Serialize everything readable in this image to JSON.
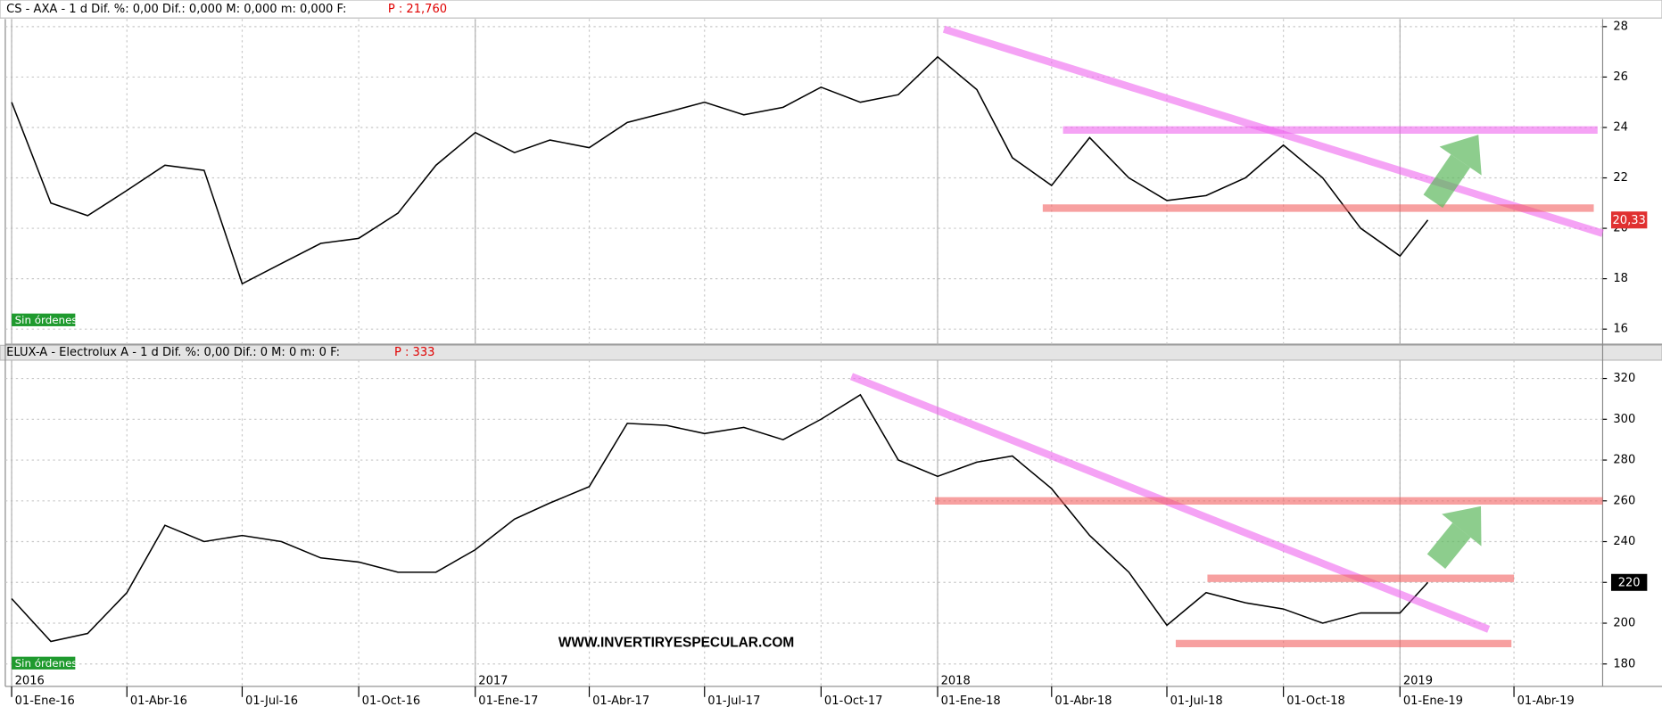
{
  "chart_data": [
    {
      "type": "line",
      "header": "CS - AXA -  1 d Dif. %: 0,00 Dif.: 0,000 M: 0,000 m: 0,000 F:",
      "quote": "P : 21,760",
      "status": "Sin órdenes",
      "color": "#000000",
      "x": [
        "2016-01-01",
        "2016-02-01",
        "2016-03-01",
        "2016-04-01",
        "2016-05-01",
        "2016-06-01",
        "2016-07-01",
        "2016-08-01",
        "2016-09-01",
        "2016-10-01",
        "2016-11-01",
        "2016-12-01",
        "2017-01-01",
        "2017-02-01",
        "2017-03-01",
        "2017-04-01",
        "2017-05-01",
        "2017-06-01",
        "2017-07-01",
        "2017-08-01",
        "2017-09-01",
        "2017-10-01",
        "2017-11-01",
        "2017-12-01",
        "2018-01-01",
        "2018-02-01",
        "2018-03-01",
        "2018-04-01",
        "2018-05-01",
        "2018-06-01",
        "2018-07-01",
        "2018-08-01",
        "2018-09-01",
        "2018-10-01",
        "2018-11-01",
        "2018-12-01",
        "2019-01-01",
        "2019-01-23"
      ],
      "values": [
        25.0,
        21.0,
        20.5,
        21.5,
        22.5,
        22.3,
        17.8,
        18.6,
        19.4,
        19.6,
        20.6,
        22.5,
        23.8,
        23.0,
        23.5,
        23.2,
        24.2,
        24.6,
        25.0,
        24.5,
        24.8,
        25.6,
        25.0,
        25.3,
        26.8,
        25.5,
        22.8,
        21.7,
        23.6,
        22.0,
        21.1,
        21.3,
        22.0,
        23.3,
        22.0,
        20.0,
        18.9,
        20.33
      ],
      "price_tag": {
        "value": 20.33,
        "label": "20,33",
        "color": "#e03030"
      },
      "xlim": [
        "2015-12-27",
        "2019-06-10"
      ],
      "ylim": [
        15.4,
        28.3
      ],
      "yticks": [
        16,
        18,
        20,
        22,
        24,
        26,
        28
      ],
      "grid": true,
      "lines": [
        {
          "color": "#ee66ee",
          "x": [
            "2018-01-06",
            "2019-06-10"
          ],
          "values": [
            27.9,
            19.8
          ]
        },
        {
          "color": "#ee66ee",
          "x": [
            "2018-04-10",
            "2019-06-06"
          ],
          "values": [
            23.9,
            23.9
          ]
        },
        {
          "color": "#f26060",
          "x": [
            "2018-03-25",
            "2019-06-03"
          ],
          "values": [
            20.8,
            20.8
          ]
        }
      ]
    },
    {
      "type": "line",
      "header": "ELUX-A - Electrolux A -  1 d Dif. %: 0,00 Dif.: 0 M: 0 m: 0 F:",
      "quote": "P : 333",
      "status": "Sin órdenes",
      "watermark": "WWW.INVERTIRYESPECULAR.COM",
      "color": "#000000",
      "x": [
        "2016-01-01",
        "2016-02-01",
        "2016-03-01",
        "2016-04-01",
        "2016-05-01",
        "2016-06-01",
        "2016-07-01",
        "2016-08-01",
        "2016-09-01",
        "2016-10-01",
        "2016-11-01",
        "2016-12-01",
        "2017-01-01",
        "2017-02-01",
        "2017-03-01",
        "2017-04-01",
        "2017-05-01",
        "2017-06-01",
        "2017-07-01",
        "2017-08-01",
        "2017-09-01",
        "2017-10-01",
        "2017-11-01",
        "2017-12-01",
        "2018-01-01",
        "2018-02-01",
        "2018-03-01",
        "2018-04-01",
        "2018-05-01",
        "2018-06-01",
        "2018-07-01",
        "2018-08-01",
        "2018-09-01",
        "2018-10-01",
        "2018-11-01",
        "2018-12-01",
        "2019-01-01",
        "2019-01-23"
      ],
      "values": [
        212,
        191,
        195,
        215,
        248,
        240,
        243,
        240,
        232,
        230,
        225,
        225,
        236,
        251,
        259,
        267,
        298,
        297,
        293,
        296,
        290,
        300,
        312,
        280,
        272,
        279,
        282,
        266,
        243,
        225,
        199,
        215,
        210,
        207,
        200,
        205,
        205,
        220
      ],
      "price_tag": {
        "value": 220,
        "label": "220",
        "color": "#000000"
      },
      "xlim": [
        "2015-12-27",
        "2019-06-10"
      ],
      "ylim": [
        169,
        329
      ],
      "yticks": [
        180,
        200,
        220,
        240,
        260,
        280,
        300,
        320
      ],
      "xticks": [
        {
          "value": "2016-01-01",
          "label": "01-Ene-16"
        },
        {
          "value": "2016-04-01",
          "label": "01-Abr-16"
        },
        {
          "value": "2016-07-01",
          "label": "01-Jul-16"
        },
        {
          "value": "2016-10-01",
          "label": "01-Oct-16"
        },
        {
          "value": "2017-01-01",
          "label": "01-Ene-17"
        },
        {
          "value": "2017-04-01",
          "label": "01-Abr-17"
        },
        {
          "value": "2017-07-01",
          "label": "01-Jul-17"
        },
        {
          "value": "2017-10-01",
          "label": "01-Oct-17"
        },
        {
          "value": "2018-01-01",
          "label": "01-Ene-18"
        },
        {
          "value": "2018-04-01",
          "label": "01-Abr-18"
        },
        {
          "value": "2018-07-01",
          "label": "01-Jul-18"
        },
        {
          "value": "2018-10-01",
          "label": "01-Oct-18"
        },
        {
          "value": "2019-01-01",
          "label": "01-Ene-19"
        },
        {
          "value": "2019-04-01",
          "label": "01-Abr-19"
        }
      ],
      "year_labels": [
        {
          "value": "2016-01-01",
          "label": "2016"
        },
        {
          "value": "2017-01-01",
          "label": "2017"
        },
        {
          "value": "2018-01-01",
          "label": "2018"
        },
        {
          "value": "2019-01-01",
          "label": "2019"
        }
      ],
      "grid": true,
      "lines": [
        {
          "color": "#ee66ee",
          "x": [
            "2017-10-25",
            "2019-03-12"
          ],
          "values": [
            321,
            197
          ]
        },
        {
          "color": "#f26060",
          "x": [
            "2017-12-30",
            "2019-06-10"
          ],
          "values": [
            260,
            260
          ]
        },
        {
          "color": "#f26060",
          "x": [
            "2018-08-02",
            "2019-04-01"
          ],
          "values": [
            222,
            222
          ]
        },
        {
          "color": "#f26060",
          "x": [
            "2018-07-08",
            "2019-03-30"
          ],
          "values": [
            190,
            190
          ]
        }
      ]
    }
  ]
}
